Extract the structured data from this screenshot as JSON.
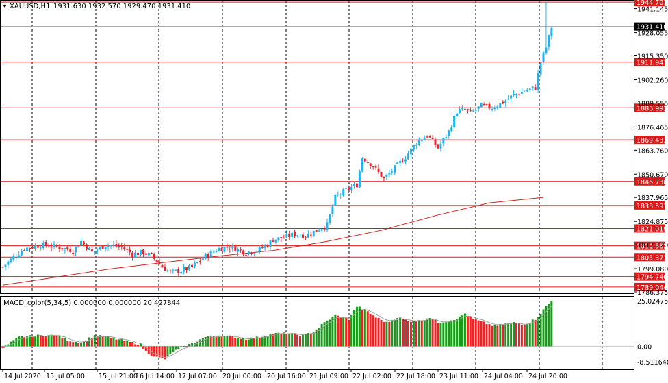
{
  "main_chart": {
    "symbol_label": "XAUUSD,H1",
    "ohlc_text": "1931.630 1932.570 1929.470 1931.410",
    "price_ticks": [
      "1941.145",
      "1928.055",
      "1915.350",
      "1902.260",
      "1889.555",
      "1876.465",
      "1863.760",
      "1850.670",
      "1837.965",
      "1824.875",
      "1812.170",
      "1799.080",
      "1786.375"
    ],
    "current_price": {
      "value": 1931.41,
      "label": "1931.410"
    },
    "horizontal_levels": [
      {
        "value": 1944.701,
        "label": "1944.701"
      },
      {
        "value": 1911.947,
        "label": "1911.947"
      },
      {
        "value": 1886.992,
        "label": "1886.992"
      },
      {
        "value": 1869.433,
        "label": "1869.433"
      },
      {
        "value": 1846.738,
        "label": "1846.738"
      },
      {
        "value": 1833.591,
        "label": "1833.591"
      },
      {
        "value": 1821.019,
        "label": "1821.019"
      },
      {
        "value": 1811.582,
        "label": "1811.582"
      },
      {
        "value": 1805.371,
        "label": "1805.371"
      },
      {
        "value": 1794.74,
        "label": "1794.740"
      },
      {
        "value": 1789.044,
        "label": "1789.044"
      }
    ],
    "time_labels": [
      "14 Jul 2020",
      "15 Jul 05:00",
      "15 Jul 21:00",
      "16 Jul 14:00",
      "17 Jul 07:00",
      "20 Jul 00:00",
      "20 Jul 16:00",
      "21 Jul 09:00",
      "22 Jul 02:00",
      "22 Jul 18:00",
      "23 Jul 11:00",
      "24 Jul 04:00",
      "24 Jul 20:00"
    ]
  },
  "macd_panel": {
    "label": "MACD_color(5,34,5) 0.000000 0.000000 20.427844",
    "ticks": [
      "25.02475",
      "0.00",
      "-8.511646"
    ]
  },
  "colors": {
    "bull": "#1eb4f0",
    "bear": "#e8232d",
    "level_line": "#e01818",
    "ma_line": "#d02020",
    "macd_up": "#1a9a1a",
    "macd_down": "#ee2222",
    "signal_line": "#a0a0a0",
    "grid": "#000000"
  },
  "chart_data": [
    {
      "type": "candlestick",
      "title": "XAUUSD,H1",
      "ylim": [
        1786.375,
        1945.5
      ],
      "x_labels": [
        "14 Jul 2020",
        "15 Jul 05:00",
        "15 Jul 21:00",
        "16 Jul 14:00",
        "17 Jul 07:00",
        "20 Jul 00:00",
        "20 Jul 16:00",
        "21 Jul 09:00",
        "22 Jul 02:00",
        "22 Jul 18:00",
        "23 Jul 11:00",
        "24 Jul 04:00",
        "24 Jul 20:00"
      ],
      "close_path": [
        [
          0,
          1800
        ],
        [
          3,
          1804
        ],
        [
          8,
          1810
        ],
        [
          14,
          1812
        ],
        [
          20,
          1811
        ],
        [
          26,
          1809
        ],
        [
          29,
          1814
        ],
        [
          33,
          1808
        ],
        [
          38,
          1812
        ],
        [
          44,
          1811
        ],
        [
          48,
          1807
        ],
        [
          52,
          1808
        ],
        [
          55,
          1806
        ],
        [
          59,
          1800
        ],
        [
          62,
          1797
        ],
        [
          66,
          1798
        ],
        [
          70,
          1800
        ],
        [
          75,
          1806
        ],
        [
          80,
          1810
        ],
        [
          84,
          1811
        ],
        [
          90,
          1808
        ],
        [
          94,
          1809
        ],
        [
          98,
          1812
        ],
        [
          100,
          1815
        ],
        [
          104,
          1816
        ],
        [
          108,
          1818
        ],
        [
          112,
          1817
        ],
        [
          116,
          1820
        ],
        [
          120,
          1823
        ],
        [
          123,
          1838
        ],
        [
          127,
          1842
        ],
        [
          131,
          1845
        ],
        [
          133,
          1860
        ],
        [
          137,
          1855
        ],
        [
          141,
          1848
        ],
        [
          145,
          1854
        ],
        [
          149,
          1860
        ],
        [
          153,
          1868
        ],
        [
          157,
          1872
        ],
        [
          161,
          1865
        ],
        [
          165,
          1874
        ],
        [
          168,
          1885
        ],
        [
          171,
          1886
        ],
        [
          173,
          1884
        ],
        [
          177,
          1888
        ],
        [
          181,
          1887
        ],
        [
          185,
          1890
        ],
        [
          189,
          1894
        ],
        [
          193,
          1896
        ],
        [
          197,
          1898
        ],
        [
          199,
          1912
        ],
        [
          201,
          1920
        ],
        [
          203,
          1931
        ]
      ]
    },
    {
      "type": "line",
      "name": "Moving Average",
      "x": [
        0,
        40,
        80,
        100,
        120,
        140,
        160,
        180,
        200
      ],
      "y": [
        1790,
        1799,
        1806,
        1809,
        1814,
        1820,
        1828,
        1835,
        1838
      ]
    },
    {
      "type": "bar",
      "title": "MACD_color(5,34,5) 0.000000 0.000000 20.427844",
      "ylim": [
        -8.511646,
        25.02475
      ],
      "envelope": [
        [
          0,
          -1
        ],
        [
          6,
          5
        ],
        [
          14,
          6
        ],
        [
          20,
          6
        ],
        [
          25,
          3
        ],
        [
          29,
          2
        ],
        [
          34,
          6
        ],
        [
          39,
          5
        ],
        [
          45,
          3
        ],
        [
          51,
          1
        ],
        [
          53,
          -3
        ],
        [
          57,
          -6
        ],
        [
          60,
          -7
        ],
        [
          63,
          -3
        ],
        [
          69,
          1
        ],
        [
          75,
          5
        ],
        [
          80,
          6
        ],
        [
          86,
          5
        ],
        [
          90,
          4
        ],
        [
          95,
          5
        ],
        [
          100,
          7
        ],
        [
          106,
          7
        ],
        [
          111,
          6
        ],
        [
          115,
          8
        ],
        [
          119,
          13
        ],
        [
          123,
          17
        ],
        [
          128,
          15
        ],
        [
          131,
          22
        ],
        [
          134,
          20
        ],
        [
          138,
          16
        ],
        [
          142,
          13
        ],
        [
          146,
          16
        ],
        [
          150,
          14
        ],
        [
          154,
          14
        ],
        [
          158,
          16
        ],
        [
          161,
          13
        ],
        [
          165,
          14
        ],
        [
          169,
          16
        ],
        [
          171,
          18
        ],
        [
          174,
          15
        ],
        [
          178,
          13
        ],
        [
          182,
          11
        ],
        [
          185,
          12
        ],
        [
          189,
          13
        ],
        [
          193,
          12
        ],
        [
          197,
          15
        ],
        [
          199,
          18
        ],
        [
          201,
          22
        ],
        [
          203,
          25
        ]
      ]
    }
  ]
}
